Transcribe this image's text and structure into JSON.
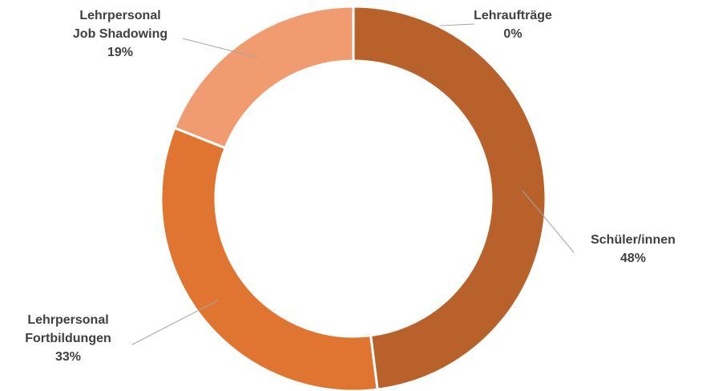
{
  "chart_data": {
    "type": "pie",
    "categories": [
      "Lehraufträge",
      "Schüler/innen",
      "Lehrpersonal\nFortbildungen",
      "Lehrpersonal\nJob Shadowing"
    ],
    "values": [
      0,
      48,
      33,
      19
    ],
    "value_labels": [
      "0%",
      "48%",
      "33%",
      "19%"
    ],
    "colors": [
      "#a85626",
      "#b8612a",
      "#df7530",
      "#f09b70"
    ]
  }
}
